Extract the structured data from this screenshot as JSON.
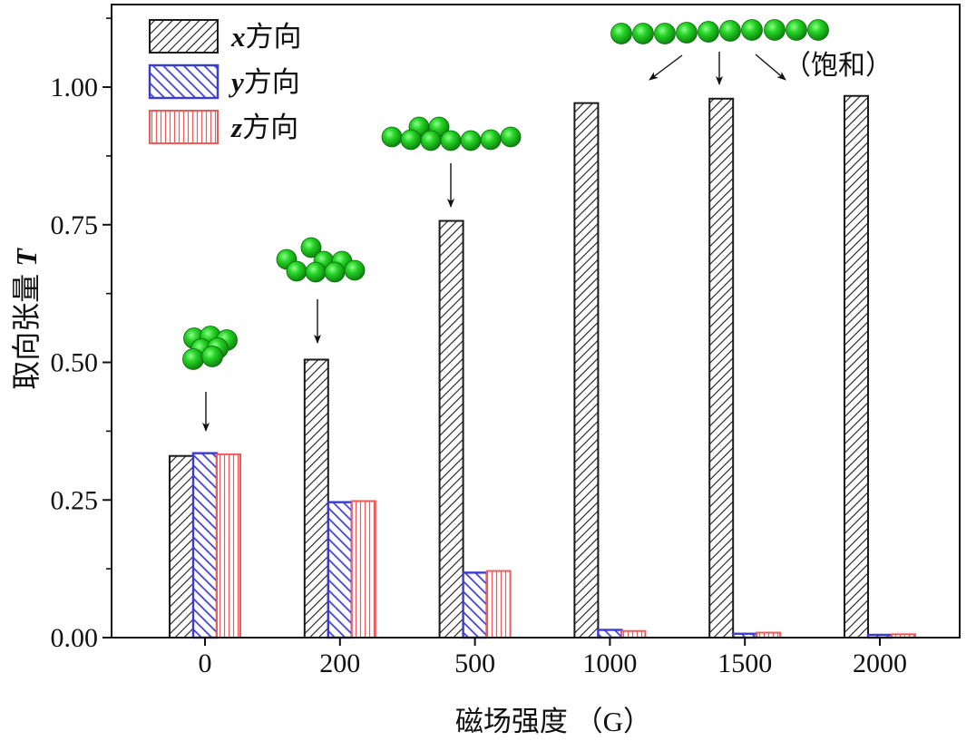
{
  "chart_data": {
    "type": "bar",
    "categories": [
      "0",
      "200",
      "500",
      "1000",
      "1500",
      "2000"
    ],
    "series": [
      {
        "name": "x方向",
        "color": "#1a1a1a",
        "values": [
          0.33,
          0.505,
          0.757,
          0.971,
          0.979,
          0.984
        ]
      },
      {
        "name": "y方向",
        "color": "#3b3bd4",
        "values": [
          0.335,
          0.246,
          0.118,
          0.014,
          0.007,
          0.005
        ]
      },
      {
        "name": "z方向",
        "color": "#ef5b5b",
        "values": [
          0.333,
          0.248,
          0.121,
          0.012,
          0.009,
          0.006
        ]
      }
    ],
    "xlabel": "磁场强度 （G）",
    "ylabel": "取向张量 T",
    "ylim": [
      0,
      1.15
    ],
    "yticks": [
      0,
      0.25,
      0.5,
      0.75,
      1.0
    ],
    "ytick_labels": [
      "0.00",
      "0.25",
      "0.50",
      "0.75",
      "1.00"
    ],
    "grid": false,
    "legend": "top-left",
    "annotations": [
      {
        "text": "（饱和）"
      }
    ]
  }
}
